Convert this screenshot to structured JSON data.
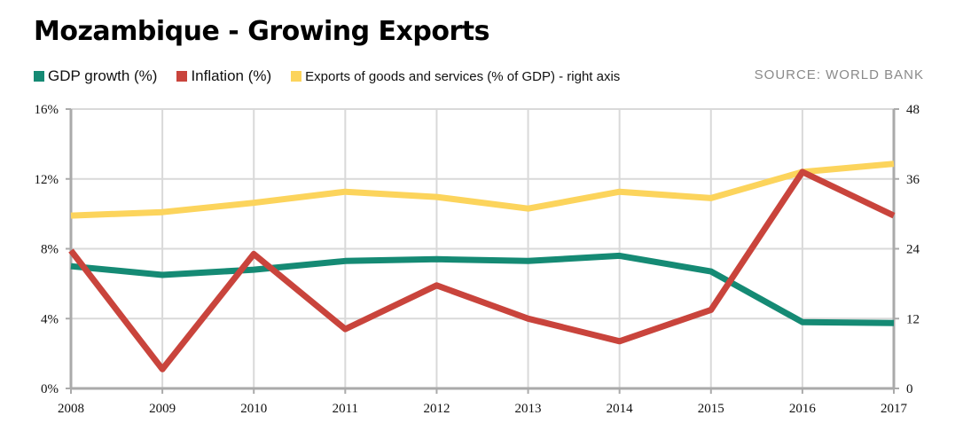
{
  "header": {
    "title": "Mozambique - Growing Exports",
    "source": "SOURCE: WORLD BANK"
  },
  "colors": {
    "gdp": "#158a74",
    "inflation": "#c9443c",
    "exports": "#fcd45c",
    "grid": "#d9d9d9",
    "axis": "#aaaaaa"
  },
  "chart_data": {
    "type": "line",
    "title": "Mozambique - Growing Exports",
    "x": [
      "2008",
      "2009",
      "2010",
      "2011",
      "2012",
      "2013",
      "2014",
      "2015",
      "2016",
      "2017"
    ],
    "y_left": {
      "ticks": [
        "0%",
        "4%",
        "8%",
        "12%",
        "16%"
      ],
      "range": [
        0,
        16
      ]
    },
    "y_right": {
      "ticks": [
        "0",
        "12",
        "24",
        "36",
        "48"
      ],
      "range": [
        0,
        48
      ]
    },
    "grid": true,
    "legend_position": "top-left",
    "series": [
      {
        "name": "GDP growth (%)",
        "axis": "left",
        "color": "#158a74",
        "values": [
          7.0,
          6.5,
          6.8,
          7.3,
          7.4,
          7.3,
          7.6,
          6.7,
          3.8,
          3.75
        ]
      },
      {
        "name": "Inflation (%)",
        "axis": "left",
        "color": "#c9443c",
        "values": [
          7.9,
          1.1,
          7.7,
          3.4,
          5.9,
          4.0,
          2.7,
          4.5,
          12.4,
          9.9
        ]
      },
      {
        "name": "Exports of goods and services (% of GDP) - right axis",
        "axis": "right",
        "color": "#fcd45c",
        "values": [
          29.7,
          30.3,
          31.9,
          33.8,
          32.9,
          30.9,
          33.8,
          32.7,
          37.2,
          38.6
        ]
      }
    ]
  }
}
